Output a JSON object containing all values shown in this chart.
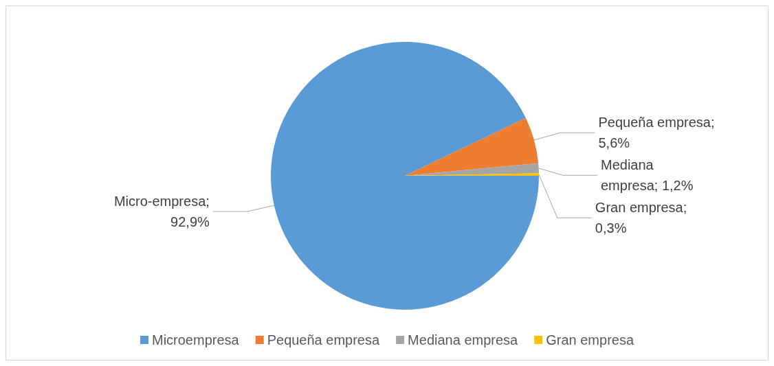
{
  "chart_data": {
    "type": "pie",
    "categories": [
      "Microempresa",
      "Pequeña empresa",
      "Mediana empresa",
      "Gran empresa"
    ],
    "values": [
      92.9,
      5.6,
      1.2,
      0.3
    ],
    "colors": [
      "#5b9bd5",
      "#ed7d31",
      "#a5a5a5",
      "#ffc000"
    ],
    "value_labels": [
      "Micro-empresa;\n92,9%",
      "Pequeña empresa;\n5,6%",
      "Mediana\nempresa; 1,2%",
      "Gran empresa;\n0,3%"
    ],
    "legend": "bottom"
  }
}
